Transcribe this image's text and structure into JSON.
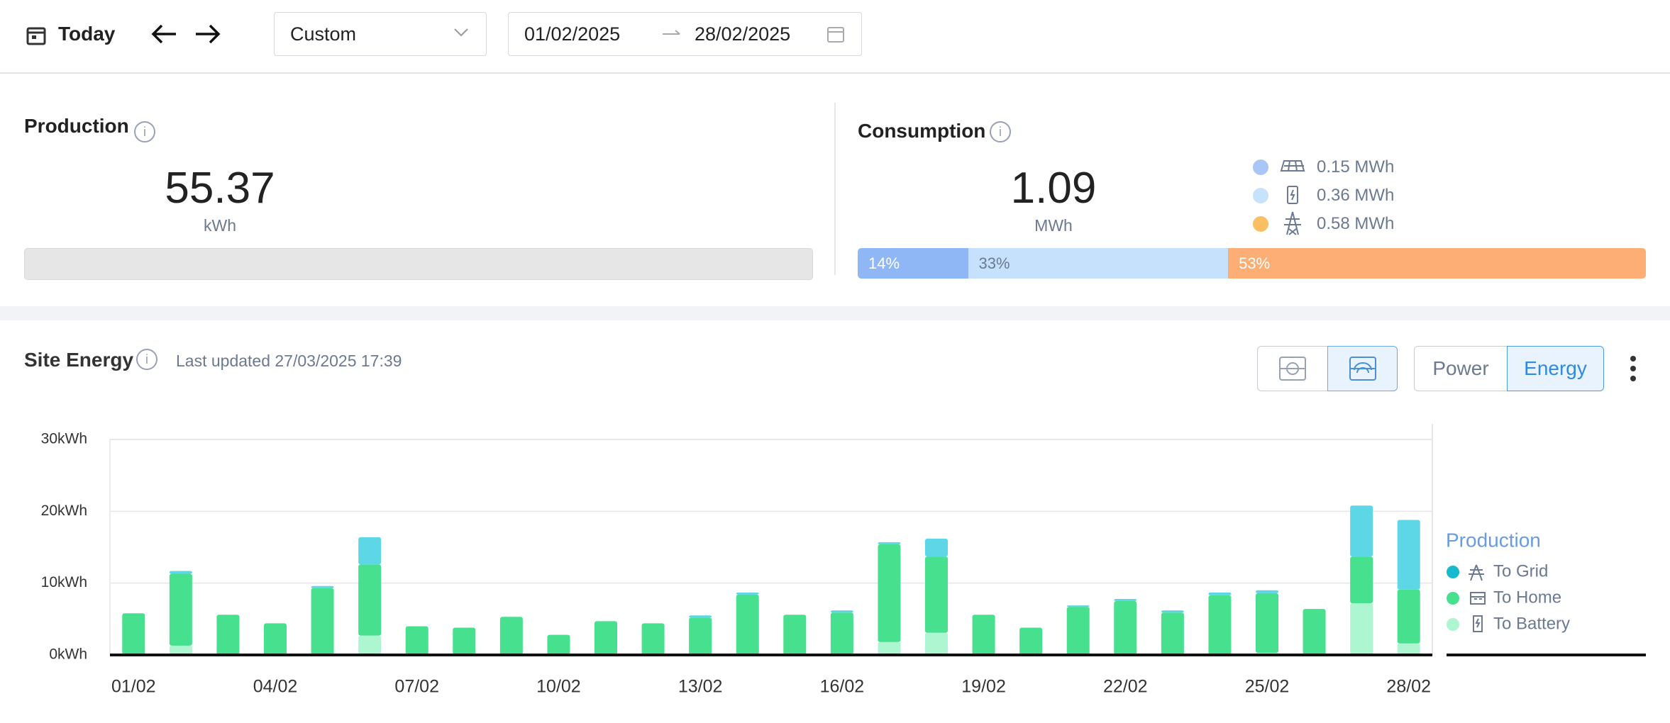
{
  "toolbar": {
    "today": "Today",
    "range_select": "Custom",
    "date_from": "01/02/2025",
    "date_to": "28/02/2025"
  },
  "production": {
    "title": "Production",
    "value": "55.37",
    "unit": "kWh"
  },
  "consumption": {
    "title": "Consumption",
    "value": "1.09",
    "unit": "MWh",
    "breakdown": [
      "0.15 MWh",
      "0.36 MWh",
      "0.58 MWh"
    ],
    "shares": [
      {
        "value": 14,
        "label": "14%",
        "color": "#8fb6f5"
      },
      {
        "value": 33,
        "label": "33%",
        "color": "#c5e1fb"
      },
      {
        "value": 53,
        "label": "53%",
        "color": "#fcae74"
      }
    ]
  },
  "site_energy": {
    "title": "Site Energy",
    "last_updated": "Last updated 27/03/2025 17:39",
    "power": "Power",
    "energy": "Energy"
  },
  "chart_data": {
    "type": "stacked_bar",
    "legend_title": "Production",
    "categories": [
      "01/02",
      null,
      null,
      "04/02",
      null,
      null,
      "07/02",
      null,
      null,
      "10/02",
      null,
      null,
      "13/02",
      null,
      null,
      "16/02",
      null,
      null,
      "19/02",
      null,
      null,
      "22/02",
      null,
      null,
      "25/02",
      null,
      null,
      "28/02"
    ],
    "series": [
      {
        "name": "To Grid",
        "color": "#5dd6e6",
        "values": [
          0,
          0.4,
          0,
          0,
          0.3,
          3.8,
          0,
          0,
          0,
          0,
          0,
          0,
          0.3,
          0.3,
          0,
          0.3,
          0.3,
          2.5,
          0,
          0,
          0.2,
          0.3,
          0.3,
          0.4,
          0.4,
          0,
          7.1,
          9.7
        ]
      },
      {
        "name": "To Home",
        "color": "#46e08e",
        "values": [
          5.8,
          10.0,
          5.6,
          4.4,
          9.3,
          9.9,
          4.0,
          3.8,
          5.3,
          2.8,
          4.7,
          4.4,
          5.2,
          8.4,
          5.6,
          5.9,
          13.6,
          10.6,
          5.6,
          3.8,
          6.7,
          7.5,
          5.9,
          8.3,
          8.3,
          6.4,
          6.5,
          7.5
        ]
      },
      {
        "name": "To Battery",
        "color": "#aef5d2",
        "values": [
          0,
          1.3,
          0,
          0,
          0,
          2.7,
          0,
          0,
          0,
          0,
          0,
          0,
          0,
          0,
          0,
          0,
          1.8,
          3.1,
          0,
          0,
          0,
          0,
          0,
          0,
          0.3,
          0,
          7.2,
          1.6
        ]
      }
    ],
    "ylim": [
      0,
      30
    ],
    "yticks": [
      {
        "value": 0,
        "label": "0kWh"
      },
      {
        "value": 10,
        "label": "10kWh"
      },
      {
        "value": 20,
        "label": "20kWh"
      },
      {
        "value": 30,
        "label": "30kWh"
      }
    ],
    "grid": true
  }
}
